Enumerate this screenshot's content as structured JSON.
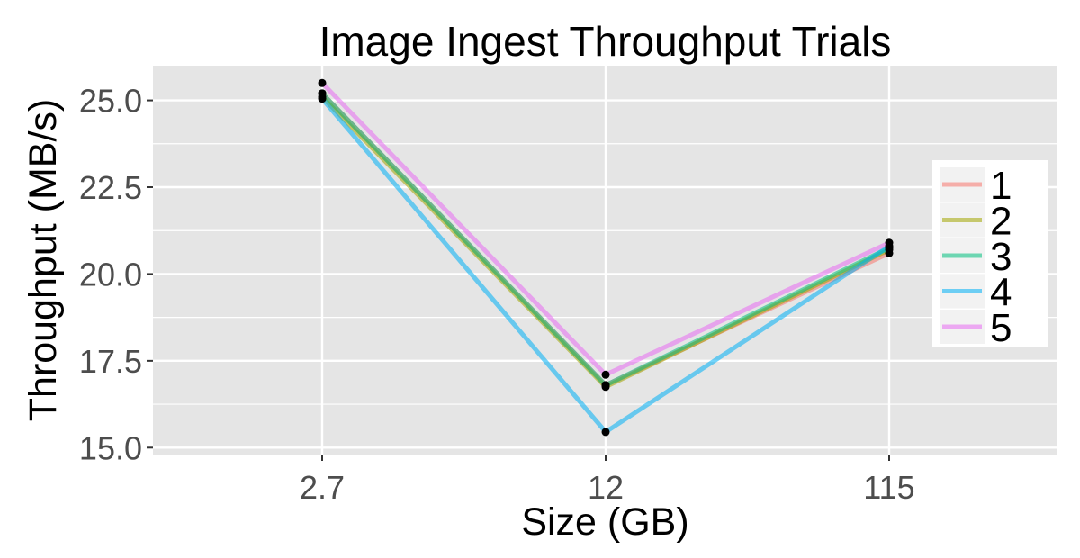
{
  "chart_data": {
    "type": "line",
    "title": "Image Ingest Throughput Trials",
    "xlabel": "Size (GB)",
    "ylabel": "Throughput (MB/s)",
    "categories": [
      "2.7",
      "12",
      "115"
    ],
    "ylim": [
      14.8,
      26.0
    ],
    "yticks": [
      15.0,
      17.5,
      20.0,
      22.5,
      25.0
    ],
    "ytick_labels": [
      "15.0",
      "17.5",
      "20.0",
      "22.5",
      "25.0"
    ],
    "grid": true,
    "legend_position": "right",
    "series": [
      {
        "name": "1",
        "color": "#F8766D",
        "values": [
          25.2,
          16.8,
          20.6
        ]
      },
      {
        "name": "2",
        "color": "#A3A500",
        "values": [
          25.1,
          16.75,
          20.7
        ]
      },
      {
        "name": "3",
        "color": "#00BF7D",
        "values": [
          25.2,
          16.8,
          20.75
        ]
      },
      {
        "name": "4",
        "color": "#00B0F6",
        "values": [
          25.05,
          15.45,
          20.8
        ]
      },
      {
        "name": "5",
        "color": "#E76BF3",
        "values": [
          25.5,
          17.1,
          20.9
        ]
      }
    ],
    "point_color": "#000000",
    "panel_background": "#E5E5E5",
    "grid_color": "#FFFFFF"
  }
}
